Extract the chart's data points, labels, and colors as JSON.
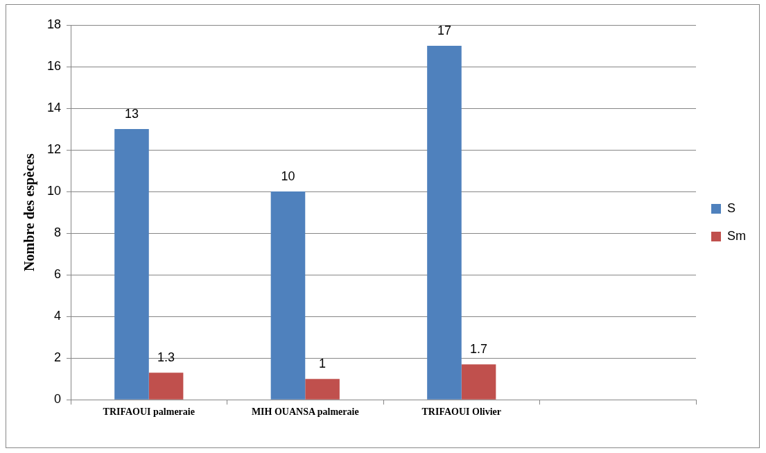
{
  "chart_data": {
    "type": "bar",
    "ylabel": "Nombre des espèces",
    "categories": [
      "TRIFAOUI palmeraie",
      "MIH OUANSA palmeraie",
      "TRIFAOUI Olivier",
      null
    ],
    "series": [
      {
        "name": "S",
        "color": "#4f81bd",
        "values": [
          13,
          10,
          17,
          null
        ]
      },
      {
        "name": "Sm",
        "color": "#c0504d",
        "values": [
          1.3,
          1,
          1.7,
          null
        ]
      }
    ],
    "ylim": [
      0,
      18
    ],
    "yticks": [
      0,
      2,
      4,
      6,
      8,
      10,
      12,
      14,
      16,
      18
    ],
    "grid": "y",
    "legend": "right",
    "data_labels": true
  }
}
